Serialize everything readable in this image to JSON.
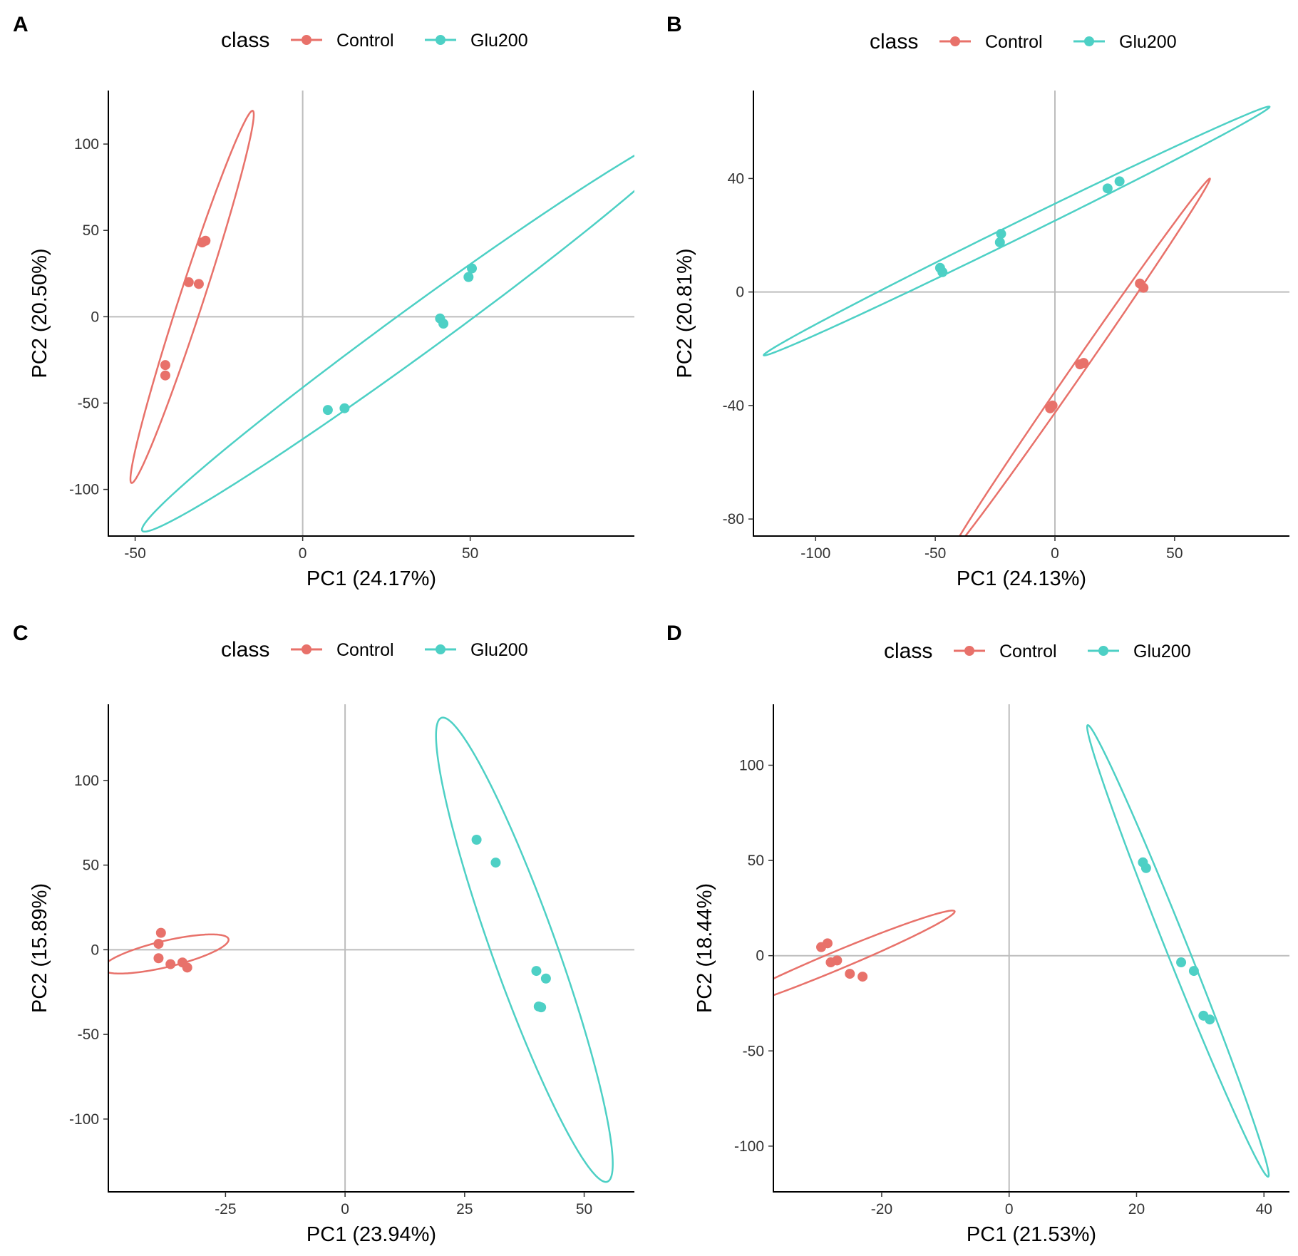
{
  "figure": {
    "legend_title": "class",
    "classes": [
      {
        "name": "Control",
        "color": "#E8716A"
      },
      {
        "name": "Glu200",
        "color": "#4DD0C5"
      }
    ]
  },
  "chart_data": [
    {
      "panel": "A",
      "type": "scatter",
      "xlabel": "PC1 (24.17%)",
      "ylabel": "PC2 (20.50%)",
      "xlim": [
        -58,
        99
      ],
      "ylim": [
        -127,
        131
      ],
      "xticks": [
        -50,
        0,
        50
      ],
      "yticks": [
        -100,
        -50,
        0,
        50,
        100
      ],
      "series": [
        {
          "name": "Control",
          "points": [
            [
              -29,
              44
            ],
            [
              -30,
              43
            ],
            [
              -34,
              20
            ],
            [
              -31,
              19
            ],
            [
              -41,
              -28
            ],
            [
              -41,
              -34
            ]
          ],
          "ellipse": {
            "cx": -33,
            "cy": 11.5,
            "a": 109.3,
            "b": 3.7,
            "angle_deg": 80.5
          }
        },
        {
          "name": "Glu200",
          "points": [
            [
              50.5,
              28
            ],
            [
              49.5,
              23
            ],
            [
              41,
              -1
            ],
            [
              42,
              -4
            ],
            [
              7.5,
              -54
            ],
            [
              12.5,
              -53
            ]
          ],
          "ellipse": {
            "cx": 34.5,
            "cy": -7.5,
            "a": 142.8,
            "b": 9.5,
            "angle_deg": 54.9
          }
        }
      ]
    },
    {
      "panel": "B",
      "type": "scatter",
      "xlabel": "PC1 (24.13%)",
      "ylabel": "PC2 (20.81%)",
      "xlim": [
        -126,
        98
      ],
      "ylim": [
        -86,
        71
      ],
      "xticks": [
        -100,
        -50,
        0,
        50
      ],
      "yticks": [
        -80,
        -40,
        0,
        40
      ],
      "series": [
        {
          "name": "Control",
          "points": [
            [
              35.5,
              3
            ],
            [
              37,
              1.5
            ],
            [
              12,
              -25
            ],
            [
              10.5,
              -25.5
            ],
            [
              -1,
              -40
            ],
            [
              -2,
              -41
            ]
          ],
          "ellipse": {
            "cx": 11,
            "cy": -25.5,
            "a": 84.7,
            "b": 2.4,
            "angle_deg": 50.6
          }
        },
        {
          "name": "Glu200",
          "points": [
            [
              27,
              39
            ],
            [
              22,
              36.5
            ],
            [
              -22.5,
              20.5
            ],
            [
              -23,
              17.5
            ],
            [
              -48,
              8.5
            ],
            [
              -47,
              7
            ]
          ],
          "ellipse": {
            "cx": -16,
            "cy": 21.5,
            "a": 114.4,
            "b": 2.8,
            "angle_deg": 22.5
          }
        }
      ]
    },
    {
      "panel": "C",
      "type": "scatter",
      "xlabel": "PC1 (23.94%)",
      "ylabel": "PC2 (15.89%)",
      "xlim": [
        -49.5,
        60.5
      ],
      "ylim": [
        -143,
        145
      ],
      "xticks": [
        -25,
        0,
        25,
        50
      ],
      "yticks": [
        -100,
        -50,
        0,
        50,
        100
      ],
      "series": [
        {
          "name": "Control",
          "points": [
            [
              -38.5,
              10
            ],
            [
              -39,
              3.5
            ],
            [
              -39,
              -5
            ],
            [
              -36.5,
              -8.5
            ],
            [
              -34,
              -7.5
            ],
            [
              -33,
              -10.5
            ]
          ],
          "ellipse": {
            "cx": -37.5,
            "cy": -2.5,
            "a": 16.3,
            "b": 6.4,
            "angle_deg": 40
          }
        },
        {
          "name": "Glu200",
          "points": [
            [
              27.5,
              65
            ],
            [
              31.5,
              51.5
            ],
            [
              40,
              -12.5
            ],
            [
              42,
              -17
            ],
            [
              40.5,
              -33.5
            ],
            [
              41,
              -34
            ]
          ],
          "ellipse": {
            "cx": 37.5,
            "cy": 0,
            "a": 138.2,
            "b": 7.1,
            "angle_deg": -82.9
          }
        }
      ]
    },
    {
      "panel": "D",
      "type": "scatter",
      "xlabel": "PC1 (21.53%)",
      "ylabel": "PC2 (18.44%)",
      "xlim": [
        -37,
        44
      ],
      "ylim": [
        -124,
        132
      ],
      "xticks": [
        -20,
        0,
        20,
        40
      ],
      "yticks": [
        -100,
        -50,
        0,
        50,
        100
      ],
      "series": [
        {
          "name": "Control",
          "points": [
            [
              -29.5,
              4.5
            ],
            [
              -28.5,
              6.5
            ],
            [
              -28,
              -3.5
            ],
            [
              -27,
              -2.5
            ],
            [
              -25,
              -9.5
            ],
            [
              -23,
              -11
            ]
          ],
          "ellipse": {
            "cx": -27,
            "cy": -2.5,
            "a": 31.9,
            "b": 3,
            "angle_deg": 55
          }
        },
        {
          "name": "Glu200",
          "points": [
            [
              21,
              49
            ],
            [
              21.5,
              46
            ],
            [
              27,
              -3.5
            ],
            [
              29,
              -8
            ],
            [
              30.5,
              -31.5
            ],
            [
              31.5,
              -33.5
            ]
          ],
          "ellipse": {
            "cx": 26.5,
            "cy": 2.5,
            "a": 119.4,
            "b": 1.8,
            "angle_deg": -83.2
          }
        }
      ]
    }
  ]
}
